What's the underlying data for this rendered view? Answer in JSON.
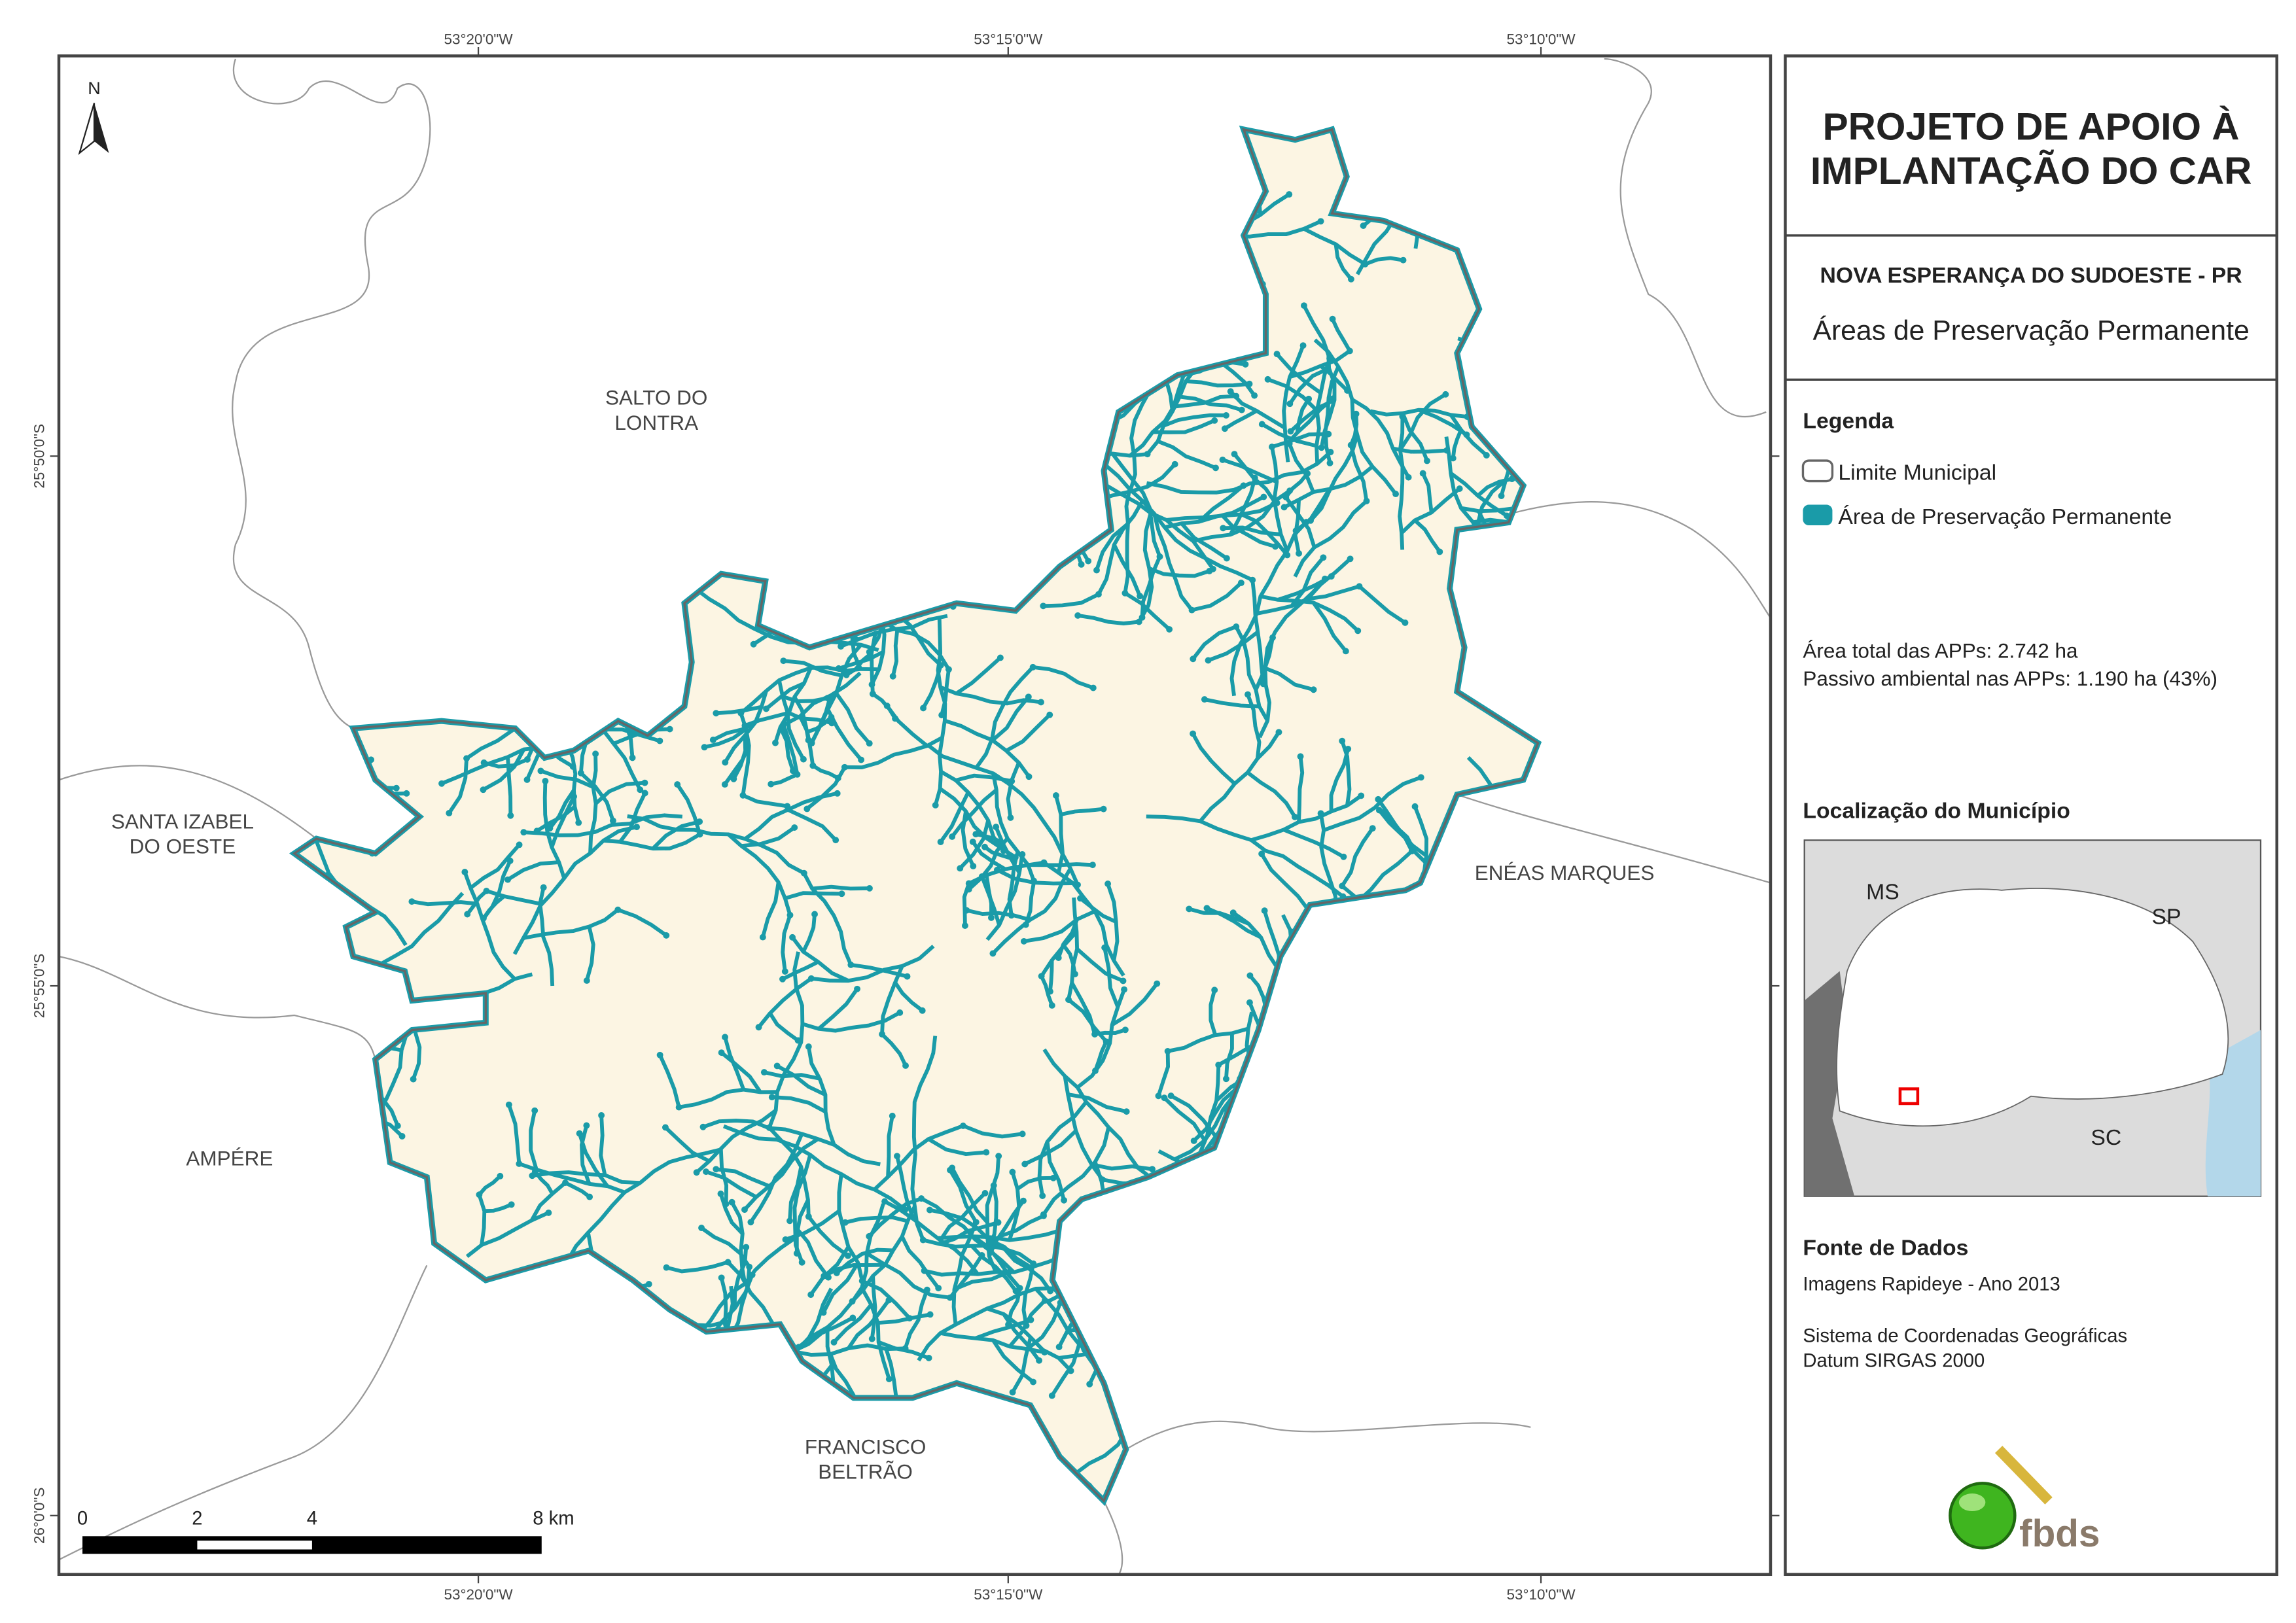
{
  "map": {
    "lon_labels": [
      "53°20'0\"W",
      "53°15'0\"W",
      "53°10'0\"W"
    ],
    "lat_labels": [
      "25°50'0\"S",
      "25°55'0\"S",
      "26°0'0\"S"
    ],
    "north": "N",
    "neighbors": [
      [
        "SALTO DO",
        "LONTRA"
      ],
      [
        "SANTA IZABEL",
        "DO OESTE"
      ],
      [
        "ENÉAS MARQUES"
      ],
      [
        "AMPÉRE"
      ],
      [
        "FRANCISCO",
        "BELTRÃO"
      ]
    ],
    "scale_labels": [
      "0",
      "2",
      "4",
      "8 km"
    ]
  },
  "panel": {
    "title": [
      "PROJETO DE APOIO À",
      "IMPLANTAÇÃO DO CAR"
    ],
    "municipality": "NOVA ESPERANÇA DO SUDOESTE - PR",
    "theme": "Áreas de Preservação Permanente",
    "legend": {
      "title": "Legenda",
      "items": [
        "Limite Municipal",
        "Área de Preservação Permanente"
      ]
    },
    "stats": [
      "Área total das APPs: 2.742 ha",
      "Passivo ambiental nas APPs: 1.190 ha (43%)"
    ],
    "location": {
      "title": "Localização do Município",
      "labels": [
        "MS",
        "SP",
        "SC"
      ]
    },
    "sources": {
      "title": "Fonte de Dados",
      "lines": [
        "Imagens Rapideye - Ano 2013",
        "Sistema de Coordenadas Geográficas",
        "Datum SIRGAS 2000"
      ]
    },
    "logo": "fbds"
  }
}
